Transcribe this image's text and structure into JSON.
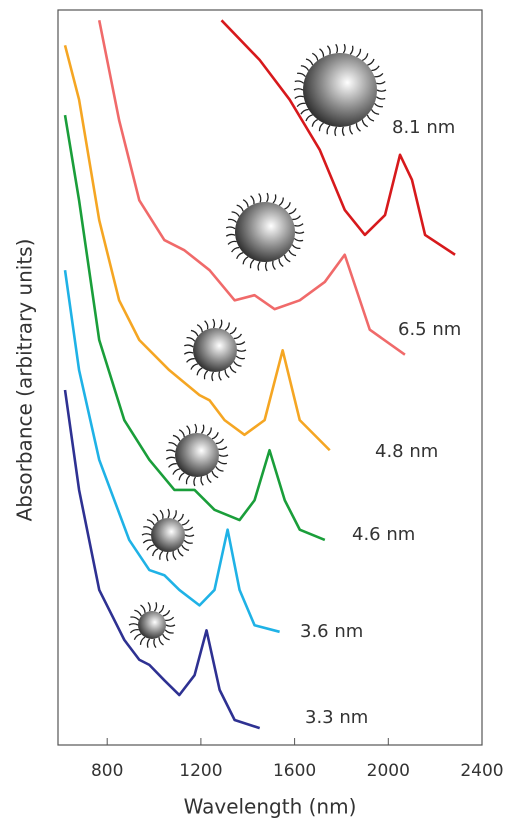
{
  "chart_data": {
    "type": "line",
    "xlabel": "Wavelength (nm)",
    "ylabel": "Absorbance (arbitrary units)",
    "xlim": [
      590,
      2400
    ],
    "ylim": [
      0,
      100
    ],
    "xticks": [
      800,
      1200,
      1600,
      2000,
      2400
    ],
    "series": [
      {
        "name": "8.1 nm",
        "color": "#d7191c",
        "x": [
          1288,
          1451,
          1579,
          1707,
          1814,
          1900,
          1986,
          2050,
          2101,
          2157,
          2285
        ],
        "values": [
          98.6,
          93.2,
          87.8,
          81,
          72.8,
          69.4,
          72.1,
          80.3,
          76.9,
          69.4,
          66.7
        ]
      },
      {
        "name": "6.5 nm",
        "color": "#f06a6a",
        "x": [
          766,
          851,
          937,
          1044,
          1130,
          1237,
          1344,
          1429,
          1515,
          1622,
          1729,
          1814,
          1921,
          2071
        ],
        "values": [
          98.6,
          85,
          74.1,
          68.7,
          67.3,
          64.6,
          60.5,
          61.2,
          59.3,
          60.5,
          63,
          66.7,
          56.5,
          53.1
        ]
      },
      {
        "name": "4.8 nm",
        "color": "#f5a623",
        "x": [
          620,
          680,
          766,
          851,
          937,
          1065,
          1194,
          1237,
          1301,
          1386,
          1472,
          1549,
          1622,
          1750
        ],
        "values": [
          95.2,
          87.8,
          71.4,
          60.5,
          55.1,
          51,
          47.6,
          46.9,
          44.2,
          42.2,
          44.2,
          53.7,
          44.2,
          40.1
        ]
      },
      {
        "name": "4.6 nm",
        "color": "#1a9e3a",
        "x": [
          620,
          680,
          766,
          873,
          980,
          1087,
          1173,
          1258,
          1365,
          1429,
          1493,
          1558,
          1622,
          1729
        ],
        "values": [
          85.7,
          74.1,
          55.1,
          44.2,
          38.8,
          34.7,
          34.7,
          32,
          30.6,
          33.3,
          40.1,
          33.3,
          29.3,
          27.9
        ]
      },
      {
        "name": "3.6 nm",
        "color": "#1fb2e6",
        "x": [
          620,
          680,
          766,
          894,
          980,
          1044,
          1108,
          1194,
          1258,
          1314,
          1365,
          1429,
          1536
        ],
        "values": [
          64.6,
          51,
          38.8,
          27.9,
          23.8,
          23.1,
          21.1,
          19,
          21.1,
          29.3,
          21.1,
          16.3,
          15.4
        ]
      },
      {
        "name": "3.3 nm",
        "color": "#2e3192",
        "x": [
          620,
          680,
          766,
          873,
          937,
          980,
          1044,
          1108,
          1173,
          1224,
          1280,
          1344,
          1451
        ],
        "values": [
          48.3,
          34.7,
          21.1,
          14.3,
          11.6,
          10.9,
          8.8,
          6.8,
          9.5,
          15.6,
          7.5,
          3.4,
          2.3
        ]
      }
    ]
  }
}
